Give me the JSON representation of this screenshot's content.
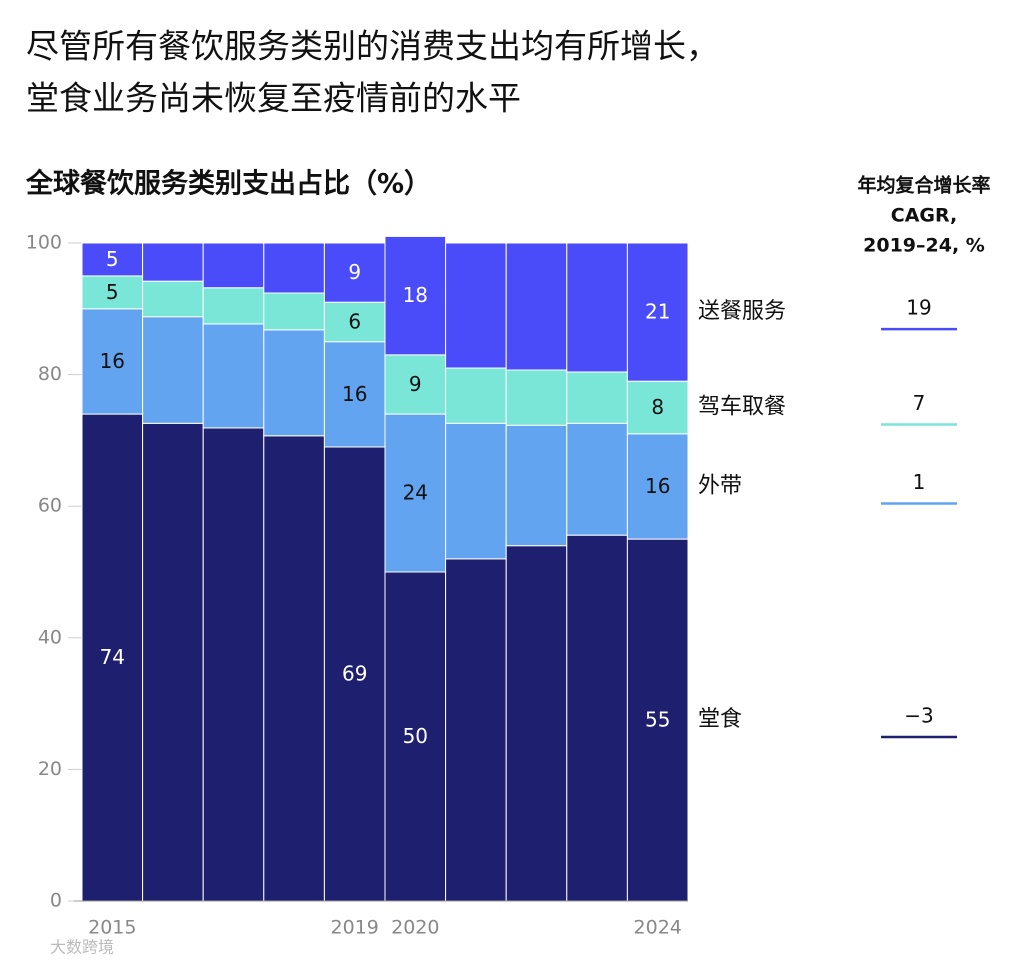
{
  "chart_data": {
    "type": "stacked-bar",
    "title": [
      "尽管所有餐饮服务类别的消费支出均有所增长，",
      "堂食业务尚未恢复至疫情前的水平"
    ],
    "subtitle": "全球餐饮服务类别支出占比（%）",
    "cagr_title": [
      "年均复合增长率",
      "CAGR,",
      "2019–24, %"
    ],
    "watermark": "大数跨境",
    "categories": [
      "2015",
      null,
      null,
      null,
      "2019",
      "2020",
      null,
      null,
      null,
      "2024"
    ],
    "ylim": [
      0,
      100
    ],
    "yticks": [
      0,
      20,
      40,
      60,
      80,
      100
    ],
    "series": [
      {
        "name": "堂食",
        "color": "#1e1f6e",
        "label_color": "#ffffff",
        "values": [
          74,
          72.6,
          71.9,
          70.7,
          69,
          50,
          52.0,
          54.0,
          55.6,
          55
        ],
        "value_labels": [
          "74",
          null,
          null,
          null,
          "69",
          "50",
          null,
          null,
          null,
          "55"
        ],
        "cagr": -3,
        "cagr_label": "−3"
      },
      {
        "name": "外带",
        "color": "#63a4f0",
        "label_color": "#111111",
        "values": [
          16,
          16.2,
          15.8,
          16.1,
          16,
          24,
          20.6,
          18.3,
          17.0,
          16
        ],
        "value_labels": [
          "16",
          null,
          null,
          null,
          "16",
          "24",
          null,
          null,
          null,
          "16"
        ],
        "cagr": 1
      },
      {
        "name": "驾车取餐",
        "color": "#79e6d8",
        "label_color": "#111111",
        "values": [
          5,
          5.4,
          5.5,
          5.6,
          6,
          9,
          8.4,
          8.4,
          7.8,
          8
        ],
        "value_labels": [
          "5",
          null,
          null,
          null,
          "6",
          "9",
          null,
          null,
          null,
          "8"
        ],
        "cagr": 7
      },
      {
        "name": "送餐服务",
        "color": "#4a4cfa",
        "label_color": "#ffffff",
        "values": [
          5,
          5.8,
          6.8,
          7.6,
          9,
          18,
          19.0,
          19.3,
          19.6,
          21
        ],
        "value_labels": [
          "5",
          null,
          null,
          null,
          "9",
          "18",
          null,
          null,
          null,
          "21"
        ],
        "cagr": 19
      }
    ]
  }
}
